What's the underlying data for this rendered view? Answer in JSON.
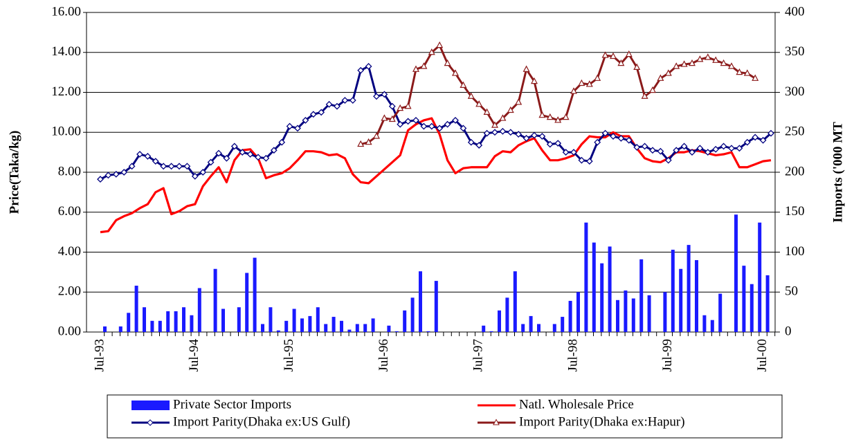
{
  "chart_data": {
    "type": "combo",
    "ylabel": "Price(Taka/kg)",
    "y2label": "Imports ('000 MT",
    "categories": [
      "Jul-93",
      null,
      null,
      null,
      null,
      null,
      null,
      null,
      null,
      null,
      null,
      null,
      "Jul-94",
      null,
      null,
      null,
      null,
      null,
      null,
      null,
      null,
      null,
      null,
      null,
      "Jul-95",
      null,
      null,
      null,
      null,
      null,
      null,
      null,
      null,
      null,
      null,
      null,
      "Jul-96",
      null,
      null,
      null,
      null,
      null,
      null,
      null,
      null,
      null,
      null,
      null,
      "Jul-97",
      null,
      null,
      null,
      null,
      null,
      null,
      null,
      null,
      null,
      null,
      null,
      "Jul-98",
      null,
      null,
      null,
      null,
      null,
      null,
      null,
      null,
      null,
      null,
      null,
      "Jul-99",
      null,
      null,
      null,
      null,
      null,
      null,
      null,
      null,
      null,
      null,
      null,
      "Jul-00",
      null
    ],
    "ylim": [
      0,
      16
    ],
    "yticks": [
      {
        "value": 0,
        "label": "0.00"
      },
      {
        "value": 2,
        "label": "2.00"
      },
      {
        "value": 4,
        "label": "4.00"
      },
      {
        "value": 6,
        "label": "6.00"
      },
      {
        "value": 8,
        "label": "8.00"
      },
      {
        "value": 10,
        "label": "10.00"
      },
      {
        "value": 12,
        "label": "12.00"
      },
      {
        "value": 14,
        "label": "14.00"
      },
      {
        "value": 16,
        "label": "16.00"
      }
    ],
    "y2lim": [
      0,
      400
    ],
    "y2ticks": [
      0,
      50,
      100,
      150,
      200,
      250,
      300,
      350,
      400
    ],
    "grid": true,
    "legend": "bottom",
    "series": [
      {
        "name": "Private Sector Imports",
        "type": "bar",
        "axis": "y2",
        "color": "#1a1aff",
        "values": [
          7,
          0,
          7,
          24,
          58,
          31,
          14,
          14,
          26,
          26,
          31,
          21,
          55,
          0,
          79,
          29,
          0,
          31,
          74,
          93,
          10,
          31,
          2,
          14,
          29,
          17,
          20,
          31,
          10,
          19,
          14,
          3,
          10,
          10,
          17,
          0,
          8,
          1,
          27,
          43,
          76,
          1,
          64,
          0,
          0,
          0,
          0,
          0,
          8,
          1,
          27,
          43,
          76,
          10,
          20,
          10,
          0,
          10,
          19,
          39,
          50,
          137,
          112,
          86,
          107,
          40,
          52,
          42,
          91,
          46,
          0,
          50,
          103,
          79,
          109,
          90,
          21,
          15,
          48,
          0,
          147,
          83,
          60,
          137,
          71,
          null
        ]
      },
      {
        "name": "Natl. Wholesale Price",
        "type": "line",
        "color": "#ff0000",
        "values": [
          5.0,
          5.05,
          5.6,
          5.8,
          5.95,
          6.2,
          6.4,
          7.0,
          7.2,
          5.9,
          6.05,
          6.3,
          6.4,
          7.3,
          7.8,
          8.25,
          7.5,
          8.6,
          9.1,
          9.15,
          8.7,
          7.7,
          7.85,
          7.95,
          8.2,
          8.6,
          9.05,
          9.05,
          9.0,
          8.85,
          8.9,
          8.7,
          7.9,
          7.5,
          7.45,
          7.8,
          8.15,
          8.5,
          8.85,
          10.1,
          10.4,
          10.6,
          10.7,
          9.9,
          8.6,
          7.95,
          8.2,
          8.25,
          8.25,
          8.25,
          8.8,
          9.05,
          9.0,
          9.35,
          9.55,
          9.7,
          9.1,
          8.6,
          8.6,
          8.7,
          8.85,
          9.4,
          9.8,
          9.75,
          9.75,
          10.0,
          9.8,
          9.8,
          9.2,
          8.7,
          8.55,
          8.5,
          8.7,
          9.0,
          9.0,
          9.1,
          9.05,
          8.95,
          8.85,
          8.9,
          9.0,
          8.25,
          8.25,
          8.4,
          8.55,
          8.6
        ]
      },
      {
        "name": "Import Parity(Dhaka ex:US Gulf)",
        "type": "line",
        "marker": "diamond",
        "color": "#000080",
        "values": [
          7.65,
          7.85,
          7.9,
          8.0,
          8.3,
          8.9,
          8.8,
          8.55,
          8.3,
          8.3,
          8.3,
          8.3,
          7.8,
          8.0,
          8.5,
          8.95,
          8.7,
          9.3,
          9.0,
          8.9,
          8.75,
          8.7,
          9.1,
          9.5,
          10.3,
          10.2,
          10.6,
          10.9,
          11.0,
          11.4,
          11.3,
          11.6,
          11.6,
          13.1,
          13.3,
          11.8,
          11.9,
          11.3,
          10.4,
          10.55,
          10.6,
          10.3,
          10.3,
          10.2,
          10.4,
          10.6,
          10.2,
          9.5,
          9.35,
          9.95,
          10.0,
          10.05,
          10.0,
          9.9,
          9.7,
          9.85,
          9.8,
          9.4,
          9.45,
          9.0,
          9.0,
          8.6,
          8.55,
          9.5,
          9.95,
          9.8,
          9.7,
          9.6,
          9.25,
          9.3,
          9.1,
          9.05,
          8.6,
          9.1,
          9.3,
          9.0,
          9.2,
          9.0,
          9.15,
          9.3,
          9.2,
          9.2,
          9.5,
          9.75,
          9.6,
          9.95
        ]
      },
      {
        "name": "Import Parity(Dhaka ex:Hapur)",
        "type": "line",
        "marker": "triangle",
        "color": "#8b1a1a",
        "values": [
          null,
          null,
          null,
          null,
          null,
          null,
          null,
          null,
          null,
          null,
          null,
          null,
          null,
          null,
          null,
          null,
          null,
          null,
          null,
          null,
          null,
          null,
          null,
          null,
          null,
          null,
          null,
          null,
          null,
          null,
          null,
          null,
          null,
          9.4,
          9.5,
          9.8,
          10.7,
          10.65,
          11.2,
          11.3,
          13.15,
          13.3,
          14.0,
          14.35,
          13.45,
          12.95,
          12.35,
          11.8,
          11.4,
          11.0,
          10.35,
          10.7,
          11.1,
          11.5,
          13.15,
          12.55,
          10.85,
          10.75,
          10.6,
          10.75,
          12.05,
          12.45,
          12.4,
          12.7,
          13.85,
          13.8,
          13.45,
          13.9,
          13.25,
          11.8,
          12.1,
          12.7,
          12.95,
          13.3,
          13.4,
          13.45,
          13.65,
          13.75,
          13.6,
          13.45,
          13.3,
          13.0,
          12.95,
          12.7,
          null,
          null
        ]
      }
    ]
  }
}
